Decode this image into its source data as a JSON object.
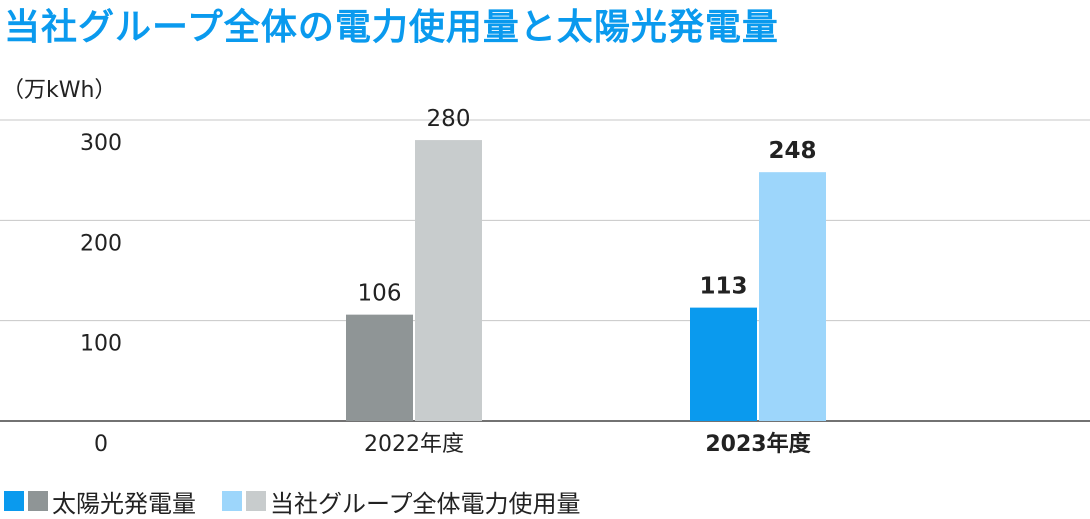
{
  "title": "当社グループ全体の電力使用量と太陽光発電量",
  "unit_label": "（万kWh）",
  "colors": {
    "solar_2022": "#8f9596",
    "usage_2022": "#c8cccd",
    "solar_2023": "#0a9aee",
    "usage_2023": "#9dd6fb",
    "gridline": "#c7c7c7",
    "axis": "#444444"
  },
  "legend": [
    {
      "label": "太陽光発電量",
      "swatches": [
        "#0a9aee",
        "#8f9596"
      ]
    },
    {
      "label": "当社グループ全体電力使用量",
      "swatches": [
        "#9dd6fb",
        "#c8cccd"
      ]
    }
  ],
  "chart_data": {
    "type": "bar",
    "title": "当社グループ全体の電力使用量と太陽光発電量",
    "ylabel": "（万kWh）",
    "ylim": [
      0,
      300
    ],
    "yticks": [
      0,
      100,
      200,
      300
    ],
    "grid": true,
    "legend_position": "bottom-left",
    "categories": [
      "2022年度",
      "2023年度"
    ],
    "highlight_category": "2023年度",
    "series": [
      {
        "name": "太陽光発電量",
        "values": [
          106,
          113
        ]
      },
      {
        "name": "当社グループ全体電力使用量",
        "values": [
          280,
          248
        ]
      }
    ]
  }
}
